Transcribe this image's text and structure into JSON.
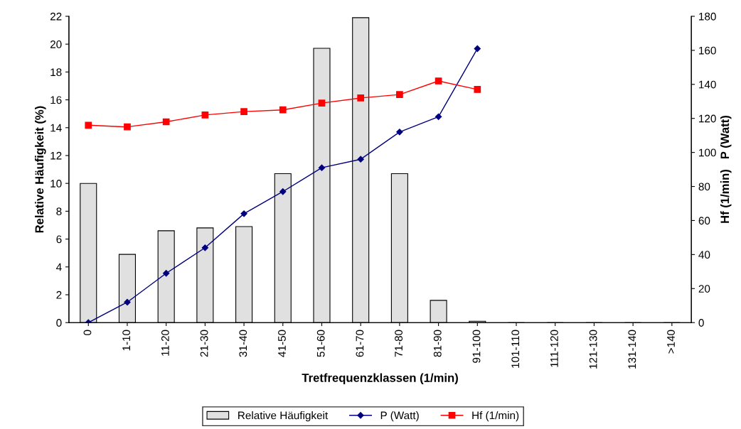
{
  "chart_data": {
    "type": "bar",
    "xlabel": "Tretfrequenzklassen (1/min)",
    "ylabel": "Relative Häufigkeit (%)",
    "y2label": "Hf (1/min)   P (Watt)",
    "categories": [
      "0",
      "1-10",
      "11-20",
      "21-30",
      "31-40",
      "41-50",
      "51-60",
      "61-70",
      "71-80",
      "81-90",
      "91-100",
      "101-110",
      "111-120",
      "121-130",
      "131-140",
      ">140"
    ],
    "series": [
      {
        "name": "Relative Häufigkeit",
        "color": "#e0e0e0",
        "values": [
          10.0,
          4.9,
          6.6,
          6.8,
          6.9,
          10.7,
          19.7,
          21.9,
          10.7,
          1.6,
          0.1,
          0,
          0,
          0,
          0,
          0
        ]
      },
      {
        "name": "P (Watt)",
        "type": "line",
        "axis": "y2",
        "color": "#00007f",
        "marker": "diamond",
        "values": [
          0,
          12,
          29,
          44,
          64,
          77,
          91,
          96,
          112,
          121,
          161,
          null,
          null,
          null,
          null,
          null
        ]
      },
      {
        "name": "Hf (1/min)",
        "type": "line",
        "axis": "y2",
        "color": "#ff0000",
        "marker": "square",
        "values": [
          116,
          115,
          118,
          122,
          124,
          125,
          129,
          132,
          134,
          142,
          137,
          null,
          null,
          null,
          null,
          null
        ]
      }
    ],
    "ylim": [
      0,
      22
    ],
    "yticks": [
      0,
      2,
      4,
      6,
      8,
      10,
      12,
      14,
      16,
      18,
      20,
      22
    ],
    "y2lim": [
      0,
      180
    ],
    "y2ticks": [
      0,
      20,
      40,
      60,
      80,
      100,
      120,
      140,
      160,
      180
    ],
    "grid": false,
    "legend": "bottom"
  }
}
